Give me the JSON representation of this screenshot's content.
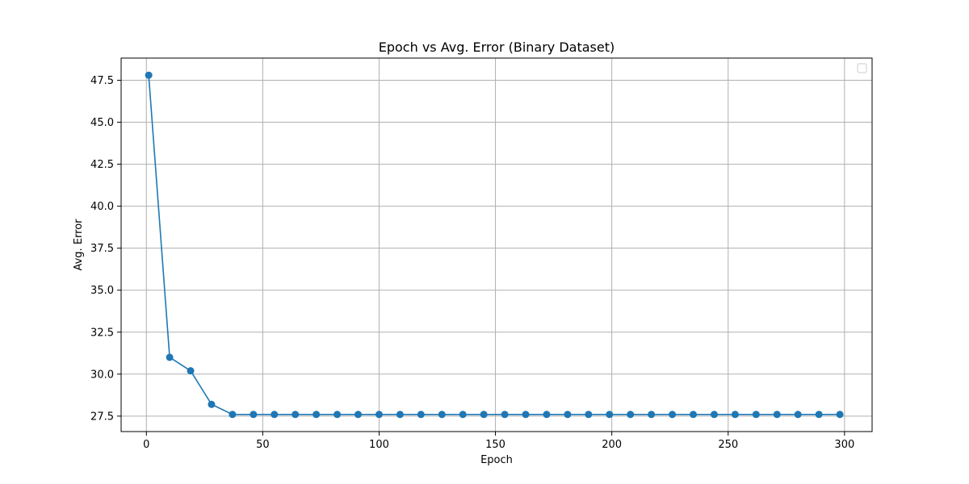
{
  "chart_data": {
    "type": "line",
    "title": "Epoch vs Avg. Error (Binary Dataset)",
    "xlabel": "Epoch",
    "ylabel": "Avg. Error",
    "xlim": [
      -10.85,
      311.85
    ],
    "ylim": [
      26.58,
      48.82
    ],
    "xticks": [
      0,
      50,
      100,
      150,
      200,
      250,
      300
    ],
    "yticks": [
      27.5,
      30.0,
      32.5,
      35.0,
      37.5,
      40.0,
      42.5,
      45.0,
      47.5
    ],
    "ytick_labels": [
      "27.5",
      "30.0",
      "32.5",
      "35.0",
      "37.5",
      "40.0",
      "42.5",
      "45.0",
      "47.5"
    ],
    "grid": true,
    "legend": {
      "placement": "upper-right",
      "entries": []
    },
    "series": [
      {
        "color": "#1f77b4",
        "marker": "circle",
        "x": [
          1,
          10,
          19,
          28,
          37,
          46,
          55,
          64,
          73,
          82,
          91,
          100,
          109,
          118,
          127,
          136,
          145,
          154,
          163,
          172,
          181,
          190,
          199,
          208,
          217,
          226,
          235,
          244,
          253,
          262,
          271,
          280,
          289,
          298
        ],
        "y": [
          47.8,
          31.0,
          30.2,
          28.2,
          27.6,
          27.6,
          27.6,
          27.6,
          27.6,
          27.6,
          27.6,
          27.6,
          27.6,
          27.6,
          27.6,
          27.6,
          27.6,
          27.6,
          27.6,
          27.6,
          27.6,
          27.6,
          27.6,
          27.6,
          27.6,
          27.6,
          27.6,
          27.6,
          27.6,
          27.6,
          27.6,
          27.6,
          27.6,
          27.6
        ]
      }
    ]
  }
}
